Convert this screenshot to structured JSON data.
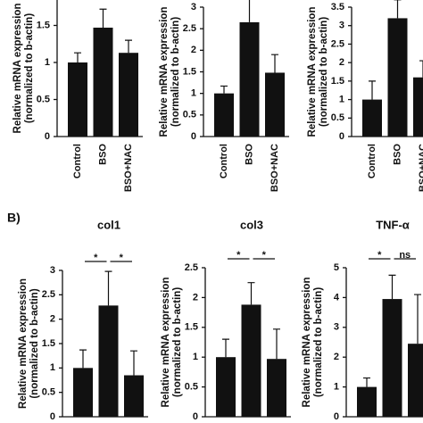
{
  "panel_label": "B)",
  "chart_data": [
    {
      "type": "bar",
      "categories": [
        "Control",
        "BSO",
        "BSO+NAC"
      ],
      "y_label": [
        "Relative mRNA expression",
        "(normalized to b-actin)"
      ],
      "values": [
        1.0,
        1.47,
        1.13
      ],
      "errors": [
        0.13,
        0.25,
        0.17
      ],
      "color": "#111111",
      "ylim": [
        0,
        2
      ],
      "yticks": [
        0,
        0.5,
        1,
        1.5
      ]
    },
    {
      "type": "bar",
      "categories": [
        "Control",
        "BSO",
        "BSO+NAC"
      ],
      "y_label": [
        "Relative mRNA expression",
        "(normalized to b-actin)"
      ],
      "values": [
        1.0,
        2.65,
        1.48
      ],
      "errors": [
        0.17,
        0.6,
        0.42
      ],
      "color": "#111111",
      "ylim": [
        0,
        3
      ],
      "yticks": [
        0,
        0.5,
        1,
        1.5,
        2,
        2.5,
        3
      ]
    },
    {
      "type": "bar",
      "categories": [
        "Control",
        "BSO",
        "BSO+NAC"
      ],
      "y_label": [
        "Relative mRNA expression",
        "(normalized to b-actin)"
      ],
      "values": [
        1.0,
        3.2,
        1.6
      ],
      "errors": [
        0.5,
        0.5,
        0.45
      ],
      "color": "#111111",
      "ylim": [
        0,
        3.5
      ],
      "yticks": [
        0,
        0.5,
        1,
        1.5,
        2,
        2.5,
        3,
        3.5
      ]
    },
    {
      "type": "bar",
      "title": "col1",
      "categories": [
        null,
        null,
        null
      ],
      "y_label": [
        "Relative mRNA expression",
        "(normalized to b-actin)"
      ],
      "values": [
        1.0,
        2.28,
        0.85
      ],
      "errors": [
        0.37,
        0.7,
        0.5
      ],
      "color": "#111111",
      "ylim": [
        0,
        3
      ],
      "yticks": [
        0,
        0.5,
        1,
        1.5,
        2,
        2.5,
        3
      ],
      "annotations": [
        "*",
        "*"
      ]
    },
    {
      "type": "bar",
      "title": "col3",
      "categories": [
        null,
        null,
        null
      ],
      "y_label": [
        "Relative mRNA expression",
        "(normalized to b-actin)"
      ],
      "values": [
        1.0,
        1.88,
        0.97
      ],
      "errors": [
        0.3,
        0.37,
        0.5
      ],
      "color": "#111111",
      "ylim": [
        0,
        2.5
      ],
      "yticks": [
        0,
        0.5,
        1,
        1.5,
        2,
        2.5
      ],
      "annotations": [
        "*",
        "*"
      ]
    },
    {
      "type": "bar",
      "title": "TNF-α",
      "categories": [
        null,
        null,
        null
      ],
      "y_label": [
        "Relative mRNA expression",
        "(normalized to b-actin)"
      ],
      "values": [
        1.0,
        3.95,
        2.45
      ],
      "errors": [
        0.3,
        0.8,
        1.65
      ],
      "color": "#111111",
      "ylim": [
        0,
        5
      ],
      "yticks": [
        0,
        1,
        2,
        3,
        4,
        5
      ],
      "annotations": [
        "*",
        "ns"
      ]
    }
  ]
}
